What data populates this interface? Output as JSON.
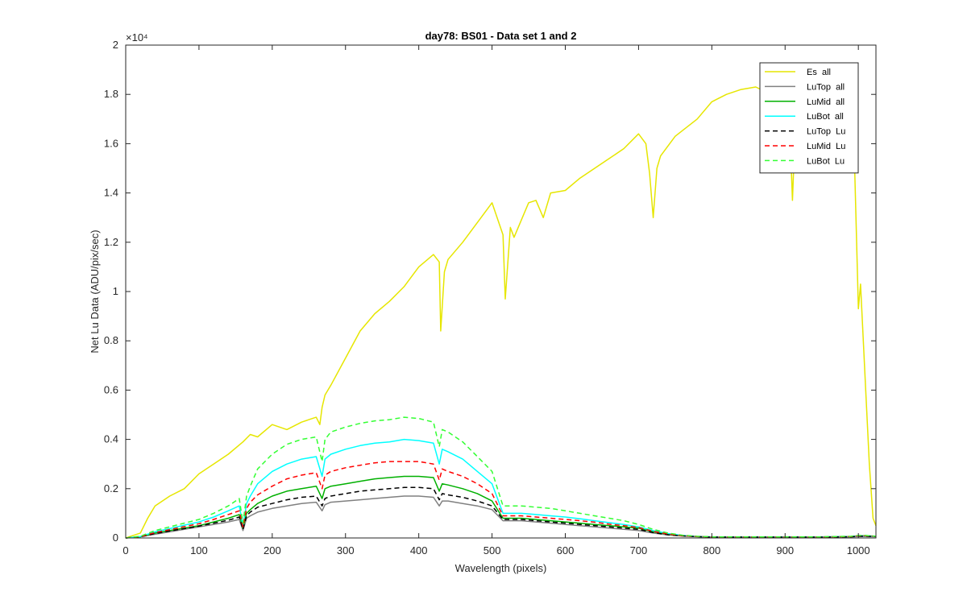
{
  "chart_data": {
    "type": "line",
    "title": "day78: BS01 - Data set 1 and 2",
    "xlabel": "Wavelength (pixels)",
    "ylabel": "Net Lu Data (ADU/pix/sec)",
    "xlim": [
      0,
      1024
    ],
    "ylim": [
      0,
      20000
    ],
    "x_ticks": [
      "0",
      "100",
      "200",
      "300",
      "400",
      "500",
      "600",
      "700",
      "800",
      "900",
      "1000"
    ],
    "y_ticks": [
      "0",
      "0.2",
      "0.4",
      "0.6",
      "0.8",
      "1",
      "1.2",
      "1.4",
      "1.6",
      "1.8",
      "2"
    ],
    "y_exponent": "×10⁴",
    "grid": false,
    "legend_position": "top-right",
    "series": [
      {
        "name": "Es  all",
        "color": "#e6e600",
        "dash": "solid",
        "x": [
          0,
          20,
          30,
          40,
          60,
          80,
          100,
          120,
          140,
          160,
          170,
          180,
          200,
          220,
          240,
          250,
          260,
          265,
          268,
          272,
          280,
          300,
          320,
          340,
          360,
          380,
          400,
          420,
          428,
          430,
          435,
          440,
          460,
          480,
          500,
          515,
          518,
          525,
          530,
          550,
          560,
          570,
          580,
          600,
          620,
          640,
          660,
          680,
          700,
          710,
          715,
          720,
          725,
          730,
          750,
          780,
          800,
          820,
          840,
          860,
          880,
          900,
          905,
          910,
          915,
          920,
          950,
          980,
          990,
          995,
          1000,
          1003,
          1010,
          1015,
          1020,
          1024
        ],
        "y": [
          0,
          200,
          800,
          1300,
          1700,
          2000,
          2600,
          3000,
          3400,
          3900,
          4200,
          4100,
          4600,
          4400,
          4700,
          4800,
          4900,
          4600,
          5300,
          5800,
          6200,
          7300,
          8400,
          9100,
          9600,
          10200,
          11000,
          11500,
          11200,
          8400,
          10800,
          11300,
          12000,
          12800,
          13600,
          12300,
          9700,
          12600,
          12200,
          13600,
          13700,
          13000,
          14000,
          14100,
          14600,
          15000,
          15400,
          15800,
          16400,
          16000,
          14800,
          13000,
          15000,
          15500,
          16300,
          17000,
          17700,
          18000,
          18200,
          18300,
          18000,
          18400,
          17800,
          13700,
          17600,
          18200,
          18500,
          18600,
          17800,
          15000,
          9300,
          10300,
          6000,
          3000,
          800,
          500
        ]
      },
      {
        "name": "LuTop  all",
        "color": "#808080",
        "dash": "solid",
        "x": [
          0,
          20,
          40,
          60,
          80,
          100,
          120,
          140,
          155,
          160,
          165,
          170,
          180,
          200,
          220,
          240,
          260,
          268,
          272,
          280,
          300,
          320,
          340,
          360,
          380,
          400,
          420,
          428,
          432,
          440,
          460,
          480,
          500,
          515,
          520,
          540,
          560,
          580,
          600,
          620,
          640,
          660,
          680,
          700,
          720,
          740,
          760,
          780,
          800,
          850,
          900,
          950,
          990,
          1000,
          1010,
          1024
        ],
        "y": [
          0,
          50,
          150,
          250,
          350,
          450,
          550,
          650,
          750,
          300,
          800,
          900,
          1050,
          1200,
          1300,
          1400,
          1450,
          1100,
          1350,
          1450,
          1500,
          1550,
          1600,
          1650,
          1700,
          1700,
          1650,
          1300,
          1500,
          1500,
          1400,
          1300,
          1150,
          700,
          700,
          700,
          650,
          600,
          550,
          500,
          450,
          400,
          350,
          300,
          200,
          120,
          80,
          50,
          30,
          30,
          30,
          30,
          40,
          60,
          60,
          50
        ]
      },
      {
        "name": "LuMid  all",
        "color": "#00b000",
        "dash": "solid",
        "x": [
          0,
          20,
          40,
          60,
          80,
          100,
          120,
          140,
          155,
          160,
          165,
          170,
          180,
          200,
          220,
          240,
          260,
          268,
          272,
          280,
          300,
          320,
          340,
          360,
          380,
          400,
          420,
          428,
          432,
          440,
          460,
          480,
          500,
          515,
          520,
          540,
          560,
          580,
          600,
          620,
          640,
          660,
          680,
          700,
          720,
          740,
          760,
          780,
          800,
          850,
          900,
          950,
          990,
          1000,
          1010,
          1024
        ],
        "y": [
          0,
          50,
          200,
          300,
          400,
          500,
          650,
          800,
          950,
          400,
          1000,
          1150,
          1400,
          1700,
          1900,
          2000,
          2100,
          1600,
          2000,
          2100,
          2200,
          2300,
          2400,
          2450,
          2500,
          2500,
          2450,
          1900,
          2200,
          2150,
          2000,
          1800,
          1500,
          800,
          800,
          800,
          750,
          700,
          650,
          600,
          550,
          500,
          450,
          400,
          250,
          150,
          90,
          60,
          40,
          40,
          40,
          40,
          60,
          90,
          90,
          70
        ]
      },
      {
        "name": "LuBot  all",
        "color": "#00ffff",
        "dash": "solid",
        "x": [
          0,
          20,
          40,
          60,
          80,
          100,
          120,
          140,
          155,
          160,
          165,
          170,
          180,
          200,
          220,
          240,
          260,
          268,
          272,
          280,
          300,
          320,
          340,
          360,
          380,
          400,
          420,
          428,
          432,
          440,
          460,
          480,
          500,
          515,
          520,
          540,
          560,
          580,
          600,
          620,
          640,
          660,
          680,
          700,
          720,
          740,
          760,
          780,
          800,
          850,
          900,
          950,
          990,
          1000,
          1010,
          1024
        ],
        "y": [
          0,
          60,
          250,
          380,
          520,
          650,
          850,
          1100,
          1300,
          500,
          1400,
          1700,
          2200,
          2700,
          3000,
          3200,
          3300,
          2500,
          3200,
          3400,
          3600,
          3750,
          3850,
          3900,
          4000,
          3950,
          3850,
          3000,
          3600,
          3500,
          3200,
          2700,
          2200,
          1000,
          1000,
          1000,
          950,
          900,
          850,
          780,
          700,
          620,
          550,
          450,
          300,
          180,
          100,
          60,
          40,
          40,
          40,
          40,
          60,
          80,
          80,
          60
        ]
      },
      {
        "name": "LuTop  Lu",
        "color": "#000000",
        "dash": "dashed",
        "x": [
          0,
          20,
          40,
          60,
          80,
          100,
          120,
          140,
          155,
          160,
          165,
          170,
          180,
          200,
          220,
          240,
          260,
          268,
          272,
          280,
          300,
          320,
          340,
          360,
          380,
          400,
          420,
          428,
          432,
          440,
          460,
          480,
          500,
          515,
          520,
          540,
          560,
          580,
          600,
          620,
          640,
          660,
          680,
          700,
          720,
          740,
          760,
          780,
          800,
          850,
          900,
          950,
          990,
          1000,
          1010,
          1024
        ],
        "y": [
          0,
          50,
          180,
          280,
          380,
          480,
          600,
          720,
          850,
          350,
          900,
          1050,
          1250,
          1400,
          1550,
          1650,
          1700,
          1300,
          1600,
          1700,
          1800,
          1900,
          1950,
          2000,
          2050,
          2050,
          2000,
          1550,
          1800,
          1750,
          1650,
          1500,
          1300,
          750,
          750,
          750,
          700,
          650,
          600,
          550,
          500,
          450,
          400,
          350,
          220,
          130,
          85,
          55,
          35,
          35,
          35,
          35,
          50,
          70,
          70,
          55
        ]
      },
      {
        "name": "LuMid  Lu",
        "color": "#ff0000",
        "dash": "dashed",
        "x": [
          0,
          20,
          40,
          60,
          80,
          100,
          120,
          140,
          155,
          160,
          165,
          170,
          180,
          200,
          220,
          240,
          260,
          268,
          272,
          280,
          300,
          320,
          340,
          360,
          380,
          400,
          420,
          428,
          432,
          440,
          460,
          480,
          500,
          515,
          520,
          540,
          560,
          580,
          600,
          620,
          640,
          660,
          680,
          700,
          720,
          740,
          760,
          780,
          800,
          850,
          900,
          950,
          990,
          1000,
          1010,
          1024
        ],
        "y": [
          0,
          55,
          220,
          340,
          460,
          580,
          750,
          950,
          1100,
          450,
          1200,
          1450,
          1750,
          2100,
          2400,
          2550,
          2650,
          2000,
          2550,
          2700,
          2850,
          2950,
          3050,
          3100,
          3100,
          3100,
          3000,
          2350,
          2800,
          2700,
          2500,
          2200,
          1800,
          900,
          900,
          900,
          850,
          800,
          750,
          700,
          640,
          560,
          500,
          420,
          270,
          160,
          95,
          60,
          40,
          40,
          40,
          40,
          60,
          85,
          85,
          65
        ]
      },
      {
        "name": "LuBot  Lu",
        "color": "#33ff33",
        "dash": "dashed",
        "x": [
          0,
          20,
          40,
          60,
          80,
          100,
          120,
          140,
          155,
          160,
          165,
          170,
          180,
          200,
          220,
          240,
          260,
          268,
          272,
          280,
          300,
          320,
          340,
          360,
          380,
          400,
          420,
          428,
          432,
          440,
          460,
          480,
          500,
          515,
          520,
          540,
          560,
          580,
          600,
          620,
          640,
          660,
          680,
          700,
          720,
          740,
          760,
          780,
          800,
          850,
          900,
          950,
          990,
          1000,
          1010,
          1024
        ],
        "y": [
          0,
          70,
          300,
          450,
          600,
          750,
          1000,
          1300,
          1600,
          600,
          1700,
          2100,
          2800,
          3400,
          3800,
          4000,
          4100,
          3100,
          4000,
          4300,
          4500,
          4650,
          4750,
          4800,
          4900,
          4850,
          4700,
          3700,
          4400,
          4300,
          3900,
          3300,
          2700,
          1300,
          1300,
          1300,
          1250,
          1200,
          1100,
          1000,
          900,
          800,
          700,
          550,
          350,
          200,
          110,
          70,
          45,
          45,
          45,
          45,
          70,
          100,
          100,
          70
        ]
      }
    ]
  }
}
